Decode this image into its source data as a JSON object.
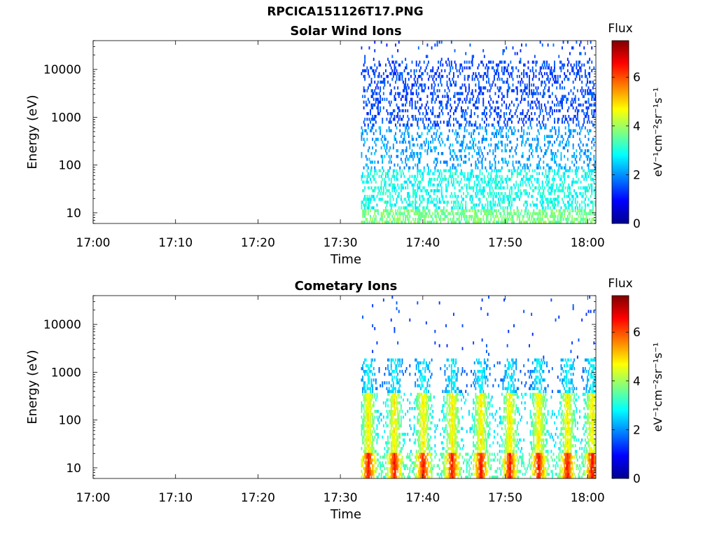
{
  "figure": {
    "title_line1": "RPCICA151126T17.PNG"
  },
  "colormap": {
    "stops": [
      "#00008f",
      "#0000ff",
      "#0080ff",
      "#00ffff",
      "#80ff80",
      "#ffff00",
      "#ff8000",
      "#ff0000",
      "#800000"
    ]
  },
  "chart_data": [
    {
      "type": "heatmap",
      "title": "Solar Wind Ions",
      "xlabel": "Time",
      "ylabel": "Energy (eV)",
      "x_ticks": [
        "17:00",
        "17:10",
        "17:20",
        "17:30",
        "17:40",
        "17:50",
        "18:00"
      ],
      "x_range_minutes": [
        0,
        61
      ],
      "y_scale": "log",
      "y_ticks": [
        10,
        100,
        1000,
        10000
      ],
      "y_range_eV": [
        6,
        40000
      ],
      "colorbar": {
        "label": "Flux",
        "units": "eV⁻¹cm⁻²sr⁻¹s⁻¹",
        "ticks": [
          0,
          2,
          4,
          6
        ],
        "range": [
          0,
          7.5
        ]
      },
      "data_start_time": "17:32:30",
      "flux_low_energy_typical": 3.5,
      "flux_high_energy_typical": 1.5
    },
    {
      "type": "heatmap",
      "title": "Cometary Ions",
      "xlabel": "Time",
      "ylabel": "Energy (eV)",
      "x_ticks": [
        "17:00",
        "17:10",
        "17:20",
        "17:30",
        "17:40",
        "17:50",
        "18:00"
      ],
      "x_range_minutes": [
        0,
        61
      ],
      "y_scale": "log",
      "y_ticks": [
        10,
        100,
        1000,
        10000
      ],
      "y_range_eV": [
        6,
        40000
      ],
      "colorbar": {
        "label": "Flux",
        "units": "eV⁻¹cm⁻²sr⁻¹s⁻¹",
        "ticks": [
          0,
          2,
          4,
          6
        ],
        "range": [
          0,
          7.5
        ]
      },
      "data_start_time": "17:32:30",
      "burst_times": [
        "17:33:20",
        "17:36:30",
        "17:40:00",
        "17:43:30",
        "17:47:00",
        "17:50:30",
        "17:54:00",
        "17:57:30",
        "18:00:30"
      ],
      "flux_peak_low_energy": 6.0
    }
  ]
}
